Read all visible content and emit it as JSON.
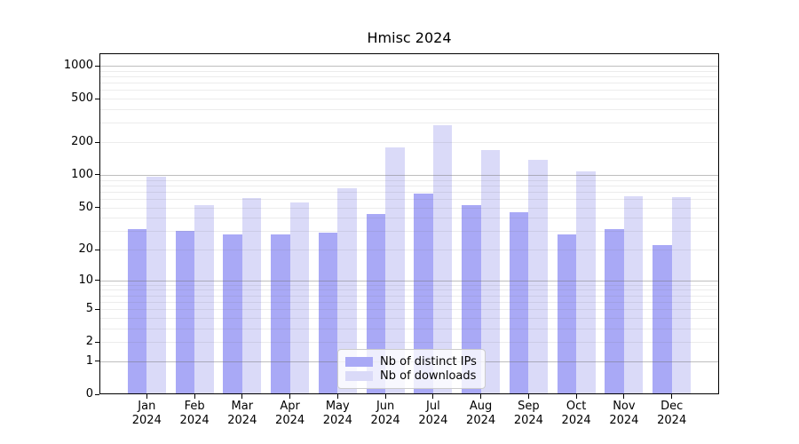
{
  "chart_data": {
    "type": "bar",
    "title": "Hmisc 2024",
    "scale": "log1p",
    "grid_on": true,
    "categories": [
      "Jan",
      "Feb",
      "Mar",
      "Apr",
      "May",
      "Jun",
      "Jul",
      "Aug",
      "Sep",
      "Oct",
      "Nov",
      "Dec"
    ],
    "x_year": "2024",
    "series": [
      {
        "name": "Nb of distinct IPs",
        "color": "#a9a9f6",
        "values": [
          31,
          30,
          28,
          28,
          29,
          43,
          67,
          52,
          45,
          28,
          31,
          22
        ]
      },
      {
        "name": "Nb of downloads",
        "color": "#dadaf8",
        "values": [
          96,
          52,
          61,
          55,
          75,
          180,
          286,
          169,
          137,
          108,
          64,
          62
        ]
      }
    ],
    "y_ticks": [
      0,
      1,
      2,
      5,
      10,
      20,
      50,
      100,
      200,
      500,
      1000
    ],
    "y_tick_labels": [
      "0",
      "1",
      "2",
      "5",
      "10",
      "20",
      "50",
      "100",
      "200",
      "500",
      "1000"
    ],
    "grid": {
      "major": [
        1,
        10,
        100,
        1000
      ],
      "minor": [
        2,
        3,
        4,
        5,
        6,
        7,
        8,
        9,
        20,
        30,
        40,
        50,
        60,
        70,
        80,
        90,
        200,
        300,
        400,
        500,
        600,
        700,
        800,
        900
      ]
    },
    "ylim": [
      0,
      1300
    ],
    "legend_position": "lower center"
  }
}
